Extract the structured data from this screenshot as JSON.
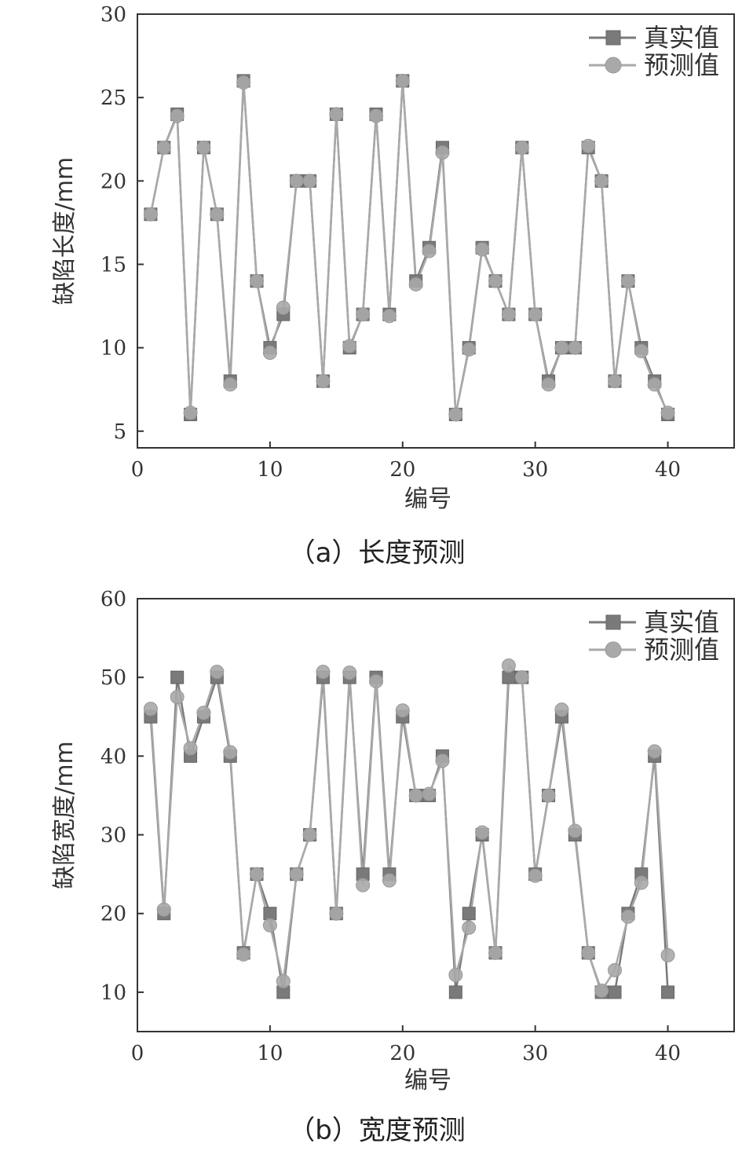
{
  "chart_data": [
    {
      "type": "line",
      "caption": "（a）长度预测",
      "xlabel": "编号",
      "ylabel": "缺陷长度/mm",
      "xlim": [
        0,
        45
      ],
      "ylim": [
        4,
        30
      ],
      "xticks": [
        0,
        10,
        20,
        30,
        40
      ],
      "yticks": [
        5,
        10,
        15,
        20,
        25,
        30
      ],
      "legend_position": "top-right",
      "x": [
        1,
        2,
        3,
        4,
        5,
        6,
        7,
        8,
        9,
        10,
        11,
        12,
        13,
        14,
        15,
        16,
        17,
        18,
        19,
        20,
        21,
        22,
        23,
        24,
        25,
        26,
        27,
        28,
        29,
        30,
        31,
        32,
        33,
        34,
        35,
        36,
        37,
        38,
        39,
        40
      ],
      "series": [
        {
          "name": "真实值",
          "marker": "square",
          "color": "#7a7a7a",
          "values": [
            18,
            22,
            24,
            6,
            22,
            18,
            8,
            26,
            14,
            10,
            12,
            20,
            20,
            8,
            24,
            10,
            12,
            24,
            12,
            26,
            14,
            16,
            22,
            6,
            10,
            16,
            14,
            12,
            22,
            12,
            8,
            10,
            10,
            22,
            20,
            8,
            14,
            10,
            8,
            6
          ]
        },
        {
          "name": "预测值",
          "marker": "circle",
          "color": "#a9a9a9",
          "values": [
            18,
            22,
            23.9,
            6.1,
            22,
            18,
            7.8,
            25.9,
            14,
            9.7,
            12.4,
            20,
            20,
            8,
            24,
            10.1,
            12,
            23.9,
            11.9,
            26,
            13.8,
            15.8,
            21.7,
            6,
            9.9,
            15.9,
            14,
            12,
            22,
            12,
            7.8,
            10,
            10,
            22.1,
            20,
            8,
            14,
            9.8,
            7.8,
            6.1
          ]
        }
      ]
    },
    {
      "type": "line",
      "caption": "（b）宽度预测",
      "xlabel": "编号",
      "ylabel": "缺陷宽度/mm",
      "xlim": [
        0,
        45
      ],
      "ylim": [
        5,
        60
      ],
      "xticks": [
        0,
        10,
        20,
        30,
        40
      ],
      "yticks": [
        10,
        20,
        30,
        40,
        50,
        60
      ],
      "legend_position": "top-right",
      "x": [
        1,
        2,
        3,
        4,
        5,
        6,
        7,
        8,
        9,
        10,
        11,
        12,
        13,
        14,
        15,
        16,
        17,
        18,
        19,
        20,
        21,
        22,
        23,
        24,
        25,
        26,
        27,
        28,
        29,
        30,
        31,
        32,
        33,
        34,
        35,
        36,
        37,
        38,
        39,
        40
      ],
      "series": [
        {
          "name": "真实值",
          "marker": "square",
          "color": "#7a7a7a",
          "values": [
            45,
            20,
            50,
            40,
            45,
            50,
            40,
            15,
            25,
            20,
            10,
            25,
            30,
            50,
            20,
            50,
            25,
            50,
            25,
            45,
            35,
            35,
            40,
            10,
            20,
            30,
            15,
            50,
            50,
            25,
            35,
            45,
            30,
            15,
            10,
            10,
            20,
            25,
            40,
            10
          ]
        },
        {
          "name": "预测值",
          "marker": "circle",
          "color": "#a9a9a9",
          "values": [
            46,
            20.5,
            47.5,
            41,
            45.5,
            50.7,
            40.5,
            14.8,
            25,
            18.5,
            11.4,
            25,
            30,
            50.7,
            20,
            50.6,
            23.6,
            49.5,
            24.2,
            45.8,
            35,
            35.2,
            39.4,
            12.2,
            18.2,
            30.3,
            15,
            51.5,
            50,
            24.8,
            35,
            45.9,
            30.5,
            15,
            10.2,
            12.8,
            19.6,
            23.9,
            40.6,
            14.7
          ]
        }
      ]
    }
  ]
}
